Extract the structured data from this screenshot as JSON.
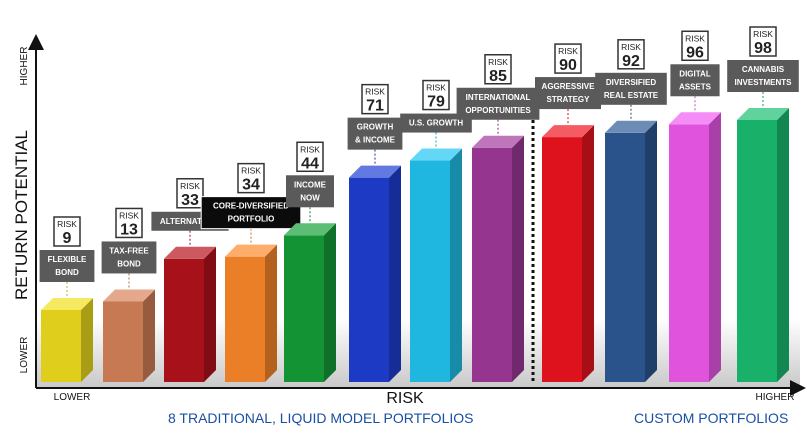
{
  "chart_data": {
    "type": "bar",
    "xlabel": "RISK",
    "ylabel": "RETURN POTENTIAL",
    "x_axis_ends": {
      "low": "LOWER",
      "high": "HIGHER"
    },
    "y_axis_ends": {
      "low": "LOWER",
      "high": "HIGHER"
    },
    "risk_badge_label": "RISK",
    "ylim": [
      0,
      100
    ],
    "bars": [
      {
        "label": [
          "FLEXIBLE",
          "BOND"
        ],
        "risk": 9,
        "color": "#f2e01e",
        "group": "traditional"
      },
      {
        "label": [
          "TAX-FREE",
          "BOND"
        ],
        "risk": 13,
        "color": "#d8835a",
        "group": "traditional"
      },
      {
        "label": [
          "ALTERNATIVES"
        ],
        "risk": 33,
        "color": "#b5121b",
        "group": "traditional"
      },
      {
        "label": [
          "CORE-DIVERSIFIED",
          "PORTFOLIO"
        ],
        "risk": 34,
        "color": "#ff8a2a",
        "group": "traditional",
        "highlighted": true
      },
      {
        "label": [
          "INCOME",
          "NOW"
        ],
        "risk": 44,
        "color": "#16a03a",
        "group": "traditional"
      },
      {
        "label": [
          "GROWTH",
          "& INCOME"
        ],
        "risk": 71,
        "color": "#1f3fd6",
        "group": "traditional"
      },
      {
        "label": [
          "U.S. GROWTH"
        ],
        "risk": 79,
        "color": "#22c6f2",
        "group": "traditional"
      },
      {
        "label": [
          "INTERNATIONAL",
          "OPPORTUNITIES"
        ],
        "risk": 85,
        "color": "#a23a9b",
        "group": "traditional"
      },
      {
        "label": [
          "AGGRESSIVE",
          "STRATEGY"
        ],
        "risk": 90,
        "color": "#f01420",
        "group": "custom"
      },
      {
        "label": [
          "DIVERSIFIED",
          "REAL ESTATE"
        ],
        "risk": 92,
        "color": "#2d5a96",
        "group": "custom"
      },
      {
        "label": [
          "DIGITAL",
          "ASSETS"
        ],
        "risk": 96,
        "color": "#f25af0",
        "group": "custom"
      },
      {
        "label": [
          "CANNABIS",
          "INVESTMENTS"
        ],
        "risk": 98,
        "color": "#1bbf73",
        "group": "custom"
      }
    ],
    "groups": {
      "traditional": "8 TRADITIONAL, LIQUID MODEL PORTFOLIOS",
      "custom": "CUSTOM PORTFOLIOS"
    }
  }
}
